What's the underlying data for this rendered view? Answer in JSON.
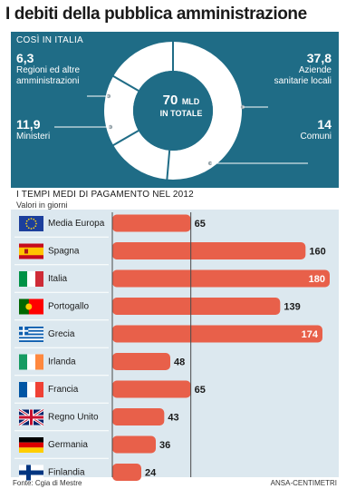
{
  "title": "I debiti della pubblica amministrazione",
  "top": {
    "section_title": "COSÌ IN ITALIA",
    "center_value": "70",
    "center_unit": "MLD",
    "center_label": "IN TOTALE",
    "slices": [
      {
        "value": "6,3",
        "label": "Regioni ed altre amministrazioni"
      },
      {
        "value": "37,8",
        "label": "Aziende sanitarie locali"
      },
      {
        "value": "11,9",
        "label": "Ministeri"
      },
      {
        "value": "14",
        "label": "Comuni"
      }
    ]
  },
  "chart_data": {
    "type": "bar",
    "orientation": "horizontal",
    "title": "I TEMPI MEDI DI PAGAMENTO NEL 2012",
    "subtitle": "Valori in giorni",
    "categories": [
      "Media Europa",
      "Spagna",
      "Italia",
      "Portogallo",
      "Grecia",
      "Irlanda",
      "Francia",
      "Regno Unito",
      "Germania",
      "Finlandia"
    ],
    "values": [
      65,
      160,
      180,
      139,
      174,
      48,
      65,
      43,
      36,
      24
    ],
    "reference_line": 65,
    "colors": {
      "bar": "#e8604a",
      "highlight_label": "#ffffff",
      "panel": "#dce8ef"
    }
  },
  "footer": {
    "source": "Fonte: Cgia di Mestre",
    "credit": "ANSA-CENTIMETRI"
  }
}
